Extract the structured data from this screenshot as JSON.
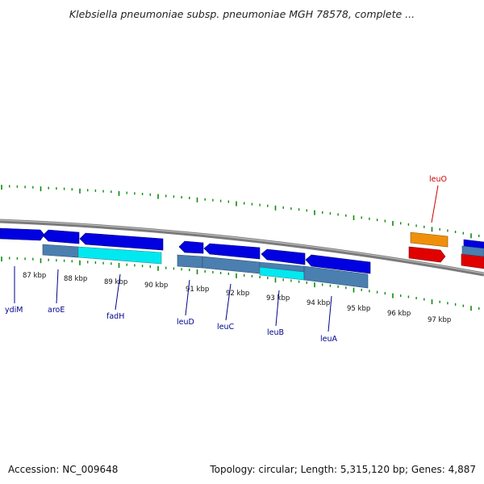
{
  "title": "Klebsiella pneumoniae subsp. pneumoniae MGH 78578, complete ...",
  "footer": {
    "accession": "Accession: NC_009648",
    "info": "Topology: circular; Length: 5,315,120 bp; Genes: 4,887"
  },
  "colors": {
    "forward_gene": "#0000e0",
    "reverse_gene": "#e00000",
    "highlight_gene": "#f0900a",
    "cds_band": "#4a7fb0",
    "cds_band_highlight": "#00e8f0",
    "tick": "#0a8a0a",
    "backbone": "#7a7a7a",
    "gene_label": "#00008b",
    "highlight_label": "#cc0000"
  },
  "scale": {
    "unit": "kbp",
    "ticks": [
      "87 kbp",
      "88 kbp",
      "89 kbp",
      "90 kbp",
      "91 kbp",
      "92 kbp",
      "93 kbp",
      "94 kbp",
      "95 kbp",
      "96 kbp",
      "97 kbp"
    ]
  },
  "gene_labels": {
    "below": [
      "ydiM",
      "aroE",
      "fadH",
      "leuD",
      "leuC",
      "leuB",
      "leuA"
    ],
    "above": [
      "leuO"
    ]
  }
}
